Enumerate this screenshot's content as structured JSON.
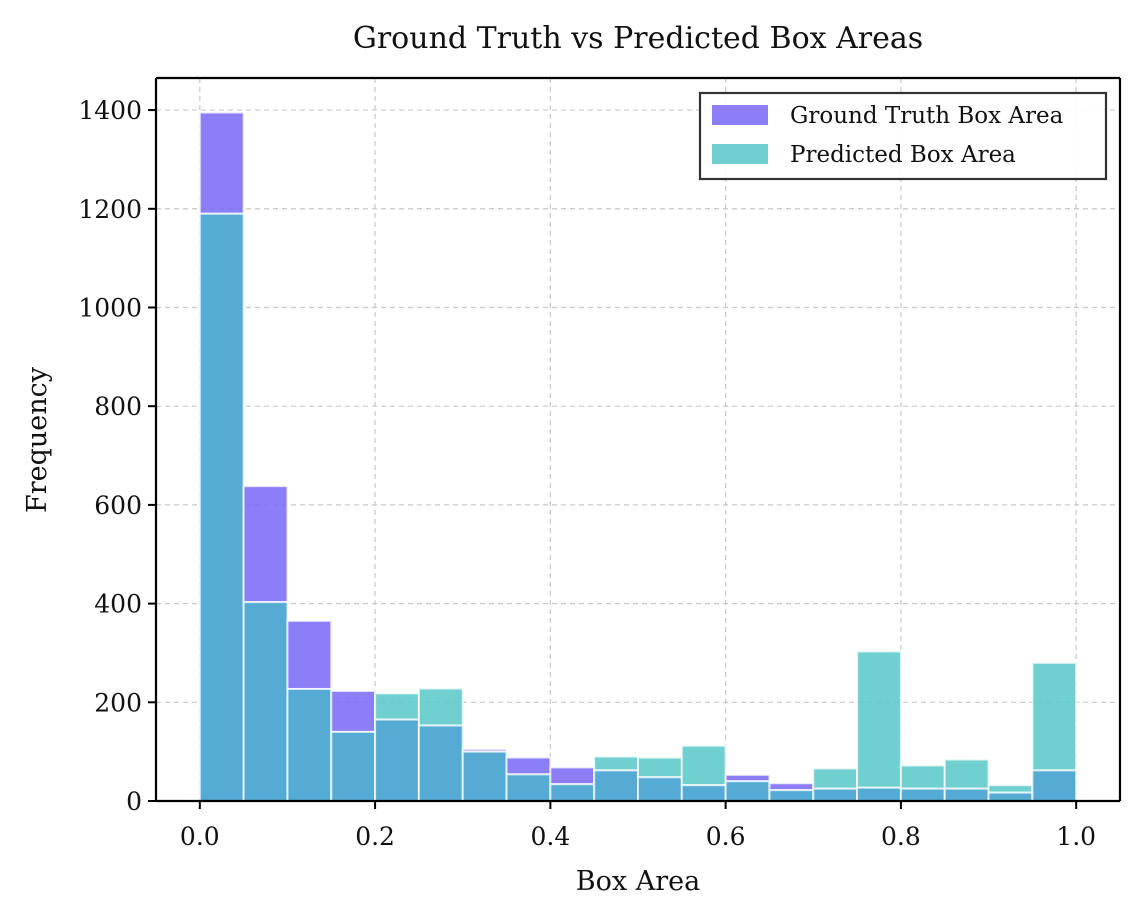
{
  "chart_data": {
    "type": "bar",
    "subtype": "overlaid-histogram",
    "title": "Ground Truth vs Predicted Box Areas",
    "xlabel": "Box Area",
    "ylabel": "Frequency",
    "xlim": [
      -0.05,
      1.05
    ],
    "ylim": [
      0,
      1465
    ],
    "xticks": [
      0.0,
      0.2,
      0.4,
      0.6,
      0.8,
      1.0
    ],
    "xtick_labels": [
      "0.0",
      "0.2",
      "0.4",
      "0.6",
      "0.8",
      "1.0"
    ],
    "yticks": [
      0,
      200,
      400,
      600,
      800,
      1000,
      1200,
      1400
    ],
    "ytick_labels": [
      "0",
      "200",
      "400",
      "600",
      "800",
      "1000",
      "1200",
      "1400"
    ],
    "grid": true,
    "legend_position": "top-right",
    "bin_edges": [
      0.0,
      0.05,
      0.1,
      0.15,
      0.2,
      0.25,
      0.3,
      0.35,
      0.4,
      0.45,
      0.5,
      0.55,
      0.6,
      0.65,
      0.7,
      0.75,
      0.8,
      0.85,
      0.9,
      0.95,
      1.0
    ],
    "series": [
      {
        "name": "Ground Truth Box Area",
        "color": "#7b6cf6",
        "values": [
          1395,
          638,
          365,
          223,
          165,
          153,
          105,
          88,
          68,
          62,
          48,
          32,
          53,
          36,
          25,
          27,
          25,
          25,
          17,
          62
        ]
      },
      {
        "name": "Predicted Box Area",
        "color": "#5cc8c8",
        "values": [
          1190,
          403,
          227,
          140,
          218,
          228,
          100,
          54,
          34,
          90,
          88,
          112,
          40,
          22,
          66,
          303,
          72,
          84,
          32,
          280
        ]
      }
    ],
    "overlap_color": "#55abd3"
  }
}
